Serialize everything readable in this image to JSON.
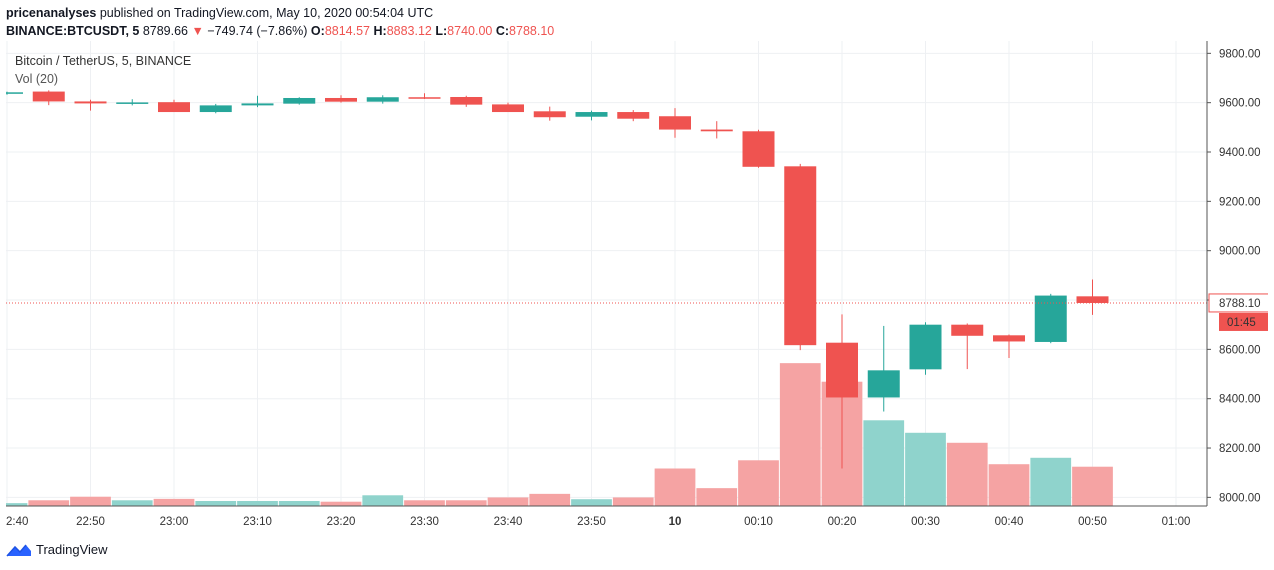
{
  "header": {
    "author": "pricenanalyses",
    "published_text": "published on TradingView.com, May 10, 2020 00:54:04 UTC",
    "symbol": "BINANCE:BTCUSDT, 5",
    "last": "8789.66",
    "change_arrow": "▼",
    "change": "−749.74 (−7.86%)",
    "o_label": "O:",
    "o_value": "8814.57",
    "h_label": "H:",
    "h_value": "8883.12",
    "l_label": "L:",
    "l_value": "8740.00",
    "c_label": "C:",
    "c_value": "8788.10"
  },
  "legend": {
    "title": "Bitcoin / TetherUS, 5, BINANCE",
    "volume": "Vol (20)"
  },
  "footer": {
    "brand": "TradingView"
  },
  "colors": {
    "up": "#26a69a",
    "down": "#ef5350",
    "vol_up": "#8fd3cc",
    "vol_down": "#f5a3a3",
    "grid": "#eef0f3",
    "axis_line": "#555555",
    "price_line": "#ef5350"
  },
  "chart_data": {
    "type": "candlestick",
    "title": "Bitcoin / TetherUS, 5, BINANCE",
    "ylim": [
      7965,
      9850
    ],
    "yticks": [
      "9800.00",
      "9600.00",
      "9400.00",
      "9200.00",
      "9000.00",
      "8800.00",
      "8600.00",
      "8400.00",
      "8200.00",
      "8000.00"
    ],
    "ytick_values": [
      9800,
      9600,
      9400,
      9200,
      9000,
      8800,
      8600,
      8400,
      8200,
      8000
    ],
    "xticks": [
      "2:40",
      "22:50",
      "23:00",
      "23:10",
      "23:20",
      "23:30",
      "23:40",
      "23:50",
      "10",
      "00:10",
      "00:20",
      "00:30",
      "00:40",
      "00:50",
      "01:00"
    ],
    "xtick_indices": [
      0,
      2,
      4,
      6,
      8,
      10,
      12,
      14,
      16,
      18,
      20,
      22,
      24,
      26,
      28
    ],
    "bold_xtick": "10",
    "current_price_label": "8788.10",
    "countdown_label": "01:45",
    "current_price": 8788.1,
    "candles": [
      {
        "o": 9638,
        "h": 9645,
        "l": 9632,
        "c": 9642
      },
      {
        "o": 9645,
        "h": 9650,
        "l": 9590,
        "c": 9605
      },
      {
        "o": 9605,
        "h": 9612,
        "l": 9568,
        "c": 9597
      },
      {
        "o": 9597,
        "h": 9614,
        "l": 9589,
        "c": 9601
      },
      {
        "o": 9602,
        "h": 9612,
        "l": 9562,
        "c": 9562
      },
      {
        "o": 9562,
        "h": 9595,
        "l": 9557,
        "c": 9589
      },
      {
        "o": 9589,
        "h": 9628,
        "l": 9582,
        "c": 9597
      },
      {
        "o": 9596,
        "h": 9622,
        "l": 9592,
        "c": 9619
      },
      {
        "o": 9619,
        "h": 9630,
        "l": 9600,
        "c": 9604
      },
      {
        "o": 9604,
        "h": 9630,
        "l": 9596,
        "c": 9622
      },
      {
        "o": 9622,
        "h": 9638,
        "l": 9615,
        "c": 9617
      },
      {
        "o": 9623,
        "h": 9628,
        "l": 9583,
        "c": 9592
      },
      {
        "o": 9593,
        "h": 9600,
        "l": 9562,
        "c": 9562
      },
      {
        "o": 9565,
        "h": 9584,
        "l": 9527,
        "c": 9541
      },
      {
        "o": 9543,
        "h": 9568,
        "l": 9528,
        "c": 9562
      },
      {
        "o": 9562,
        "h": 9570,
        "l": 9525,
        "c": 9535
      },
      {
        "o": 9545,
        "h": 9578,
        "l": 9458,
        "c": 9491
      },
      {
        "o": 9491,
        "h": 9525,
        "l": 9455,
        "c": 9484
      },
      {
        "o": 9484,
        "h": 9490,
        "l": 9336,
        "c": 9340
      },
      {
        "o": 9342,
        "h": 9352,
        "l": 8597,
        "c": 8617
      },
      {
        "o": 8627,
        "h": 8742,
        "l": 8117,
        "c": 8405
      },
      {
        "o": 8405,
        "h": 8695,
        "l": 8348,
        "c": 8515
      },
      {
        "o": 8519,
        "h": 8710,
        "l": 8497,
        "c": 8700
      },
      {
        "o": 8700,
        "h": 8705,
        "l": 8520,
        "c": 8655
      },
      {
        "o": 8657,
        "h": 8660,
        "l": 8565,
        "c": 8632
      },
      {
        "o": 8630,
        "h": 8825,
        "l": 8625,
        "c": 8818
      },
      {
        "o": 8815,
        "h": 8883,
        "l": 8740,
        "c": 8788
      }
    ],
    "volumes": [
      8,
      16,
      26,
      16,
      20,
      14,
      14,
      14,
      12,
      30,
      16,
      16,
      24,
      34,
      19,
      24,
      105,
      50,
      128,
      400,
      348,
      240,
      205,
      177,
      117,
      135,
      110
    ],
    "volume_max": 420
  }
}
